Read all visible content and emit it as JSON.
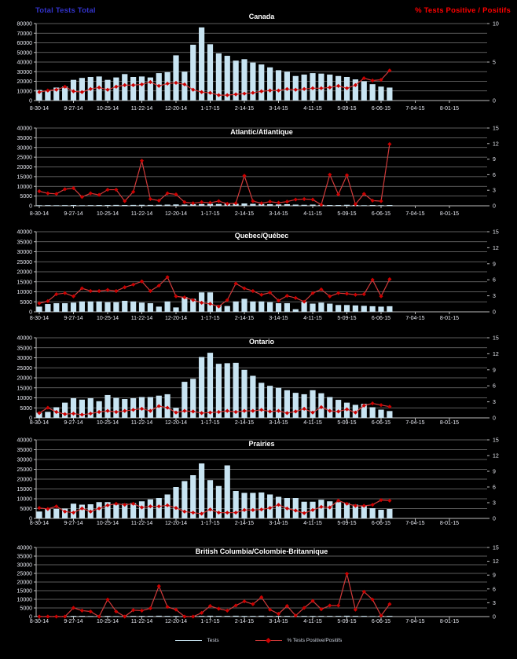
{
  "header": {
    "left_axis_title": "Total Tests Total",
    "right_axis_title": "% Tests Positive / Positifs"
  },
  "colors": {
    "background": "#000000",
    "bar_fill": "#C8E4F2",
    "line": "#D03A3A",
    "marker": "#CC0000",
    "grid": "#7A7A7A",
    "axis": "#BBBBBB",
    "text": "#E8EAF2",
    "left_title_color": "#3333CC",
    "right_title_color": "#FF0000",
    "panel_title_color": "#FFFFFF"
  },
  "legend": {
    "tests_label": "Tests",
    "pct_label": "% Tests Positive/Positifs"
  },
  "x_tick_labels": [
    "8-30-14",
    "9-27-14",
    "10-25-14",
    "11-22-14",
    "12-20-14",
    "1-17-15",
    "2-14-15",
    "3-14-15",
    "4-11-15",
    "5-09-15",
    "6-06-15",
    "7-04-15",
    "8-01-15"
  ],
  "chart_data": [
    {
      "type": "bar+line",
      "region": "Canada",
      "slug": "canada",
      "x_weekly_start": "8-30-14",
      "left_axis": {
        "min": 0,
        "max": 80000,
        "step": 10000
      },
      "right_axis": {
        "min": 0,
        "max": 10,
        "labels": [
          0,
          5,
          10
        ]
      },
      "tests": [
        11000,
        10500,
        13500,
        14500,
        21500,
        23500,
        24500,
        25000,
        21500,
        24000,
        27500,
        24500,
        25000,
        24000,
        28500,
        29500,
        47000,
        30000,
        58000,
        76000,
        58500,
        49000,
        46500,
        41500,
        43000,
        39500,
        37500,
        34500,
        31500,
        30000,
        25500,
        27000,
        28500,
        28000,
        27000,
        25500,
        24500,
        22000,
        20000,
        17000,
        14500,
        13500
      ],
      "pct_positive": [
        1.1,
        1.3,
        1.4,
        1.8,
        1.2,
        1.1,
        1.5,
        1.7,
        1.4,
        1.8,
        2.0,
        2.0,
        2.1,
        2.4,
        1.9,
        2.2,
        2.3,
        2.1,
        1.4,
        1.1,
        1.0,
        0.7,
        0.7,
        0.8,
        0.9,
        1.0,
        1.2,
        1.3,
        1.3,
        1.5,
        1.4,
        1.5,
        1.6,
        1.6,
        1.7,
        1.9,
        1.6,
        2.0,
        2.9,
        2.6,
        2.7,
        3.9
      ]
    },
    {
      "type": "bar+line",
      "region": "Atlantic/Atlantique",
      "slug": "atlantic",
      "x_weekly_start": "8-30-14",
      "left_axis": {
        "min": 0,
        "max": 40000,
        "step": 5000
      },
      "right_axis": {
        "min": 0,
        "max": 15,
        "labels": [
          0,
          3,
          6,
          9,
          12,
          15
        ]
      },
      "tests": [
        300,
        350,
        300,
        350,
        400,
        300,
        350,
        400,
        400,
        450,
        400,
        450,
        500,
        450,
        500,
        600,
        700,
        600,
        800,
        900,
        1000,
        900,
        1100,
        1000,
        1200,
        1000,
        900,
        800,
        700,
        800,
        600,
        500,
        600,
        500,
        400,
        400,
        500,
        400,
        300,
        400,
        300,
        400
      ],
      "pct_positive": [
        2.8,
        2.4,
        2.3,
        3.2,
        3.4,
        1.7,
        2.4,
        2.1,
        3.1,
        3.1,
        0.9,
        2.7,
        8.7,
        1.3,
        1.0,
        2.4,
        2.2,
        0.7,
        0.5,
        0.7,
        0.6,
        0.9,
        0.4,
        0.5,
        5.8,
        0.9,
        0.5,
        0.8,
        0.6,
        0.8,
        1.2,
        1.3,
        1.2,
        0.2,
        6.0,
        2.2,
        5.9,
        0.3,
        2.3,
        1.0,
        0.9,
        11.9
      ]
    },
    {
      "type": "bar+line",
      "region": "Quebec/Québec",
      "slug": "quebec",
      "x_weekly_start": "8-30-14",
      "left_axis": {
        "min": 0,
        "max": 40000,
        "step": 5000
      },
      "right_axis": {
        "min": 0,
        "max": 15,
        "labels": [
          0,
          3,
          6,
          9,
          12,
          15
        ]
      },
      "tests": [
        2600,
        3900,
        4300,
        4300,
        4600,
        5200,
        5200,
        5200,
        4800,
        4800,
        5500,
        5200,
        4600,
        4300,
        2600,
        5200,
        2200,
        7400,
        6500,
        9700,
        9700,
        3300,
        2900,
        5200,
        6500,
        5200,
        5200,
        4800,
        4300,
        4300,
        1300,
        4900,
        4100,
        4600,
        4100,
        3400,
        3400,
        3200,
        3000,
        2800,
        2600,
        2800
      ],
      "pct_positive": [
        1.6,
        2.0,
        3.3,
        3.5,
        2.9,
        4.4,
        3.9,
        3.9,
        4.1,
        3.9,
        4.6,
        5.1,
        5.7,
        3.9,
        4.9,
        6.5,
        2.9,
        2.7,
        2.2,
        1.7,
        1.5,
        1.0,
        2.2,
        5.3,
        4.4,
        3.9,
        3.2,
        3.6,
        2.1,
        3.0,
        2.6,
        1.9,
        3.5,
        4.2,
        2.9,
        3.5,
        3.4,
        3.2,
        3.3,
        6.0,
        2.9,
        6.1
      ]
    },
    {
      "type": "bar+line",
      "region": "Ontario",
      "slug": "ontario",
      "x_weekly_start": "8-30-14",
      "left_axis": {
        "min": 0,
        "max": 40000,
        "step": 5000
      },
      "right_axis": {
        "min": 0,
        "max": 15,
        "labels": [
          0,
          3,
          6,
          9,
          12,
          15
        ]
      },
      "tests": [
        2600,
        3000,
        5300,
        7600,
        9800,
        9100,
        9800,
        8300,
        11400,
        10000,
        9400,
        9800,
        10400,
        10400,
        11100,
        11800,
        5000,
        18000,
        19500,
        30400,
        32500,
        27000,
        27300,
        27500,
        24000,
        21000,
        17500,
        16000,
        15000,
        13800,
        12500,
        11800,
        13800,
        12300,
        10400,
        9000,
        7600,
        6500,
        7000,
        5300,
        4100,
        3400
      ],
      "pct_positive": [
        0.9,
        1.9,
        1.1,
        0.7,
        0.8,
        0.6,
        0.8,
        1.1,
        1.3,
        1.1,
        1.3,
        1.5,
        1.7,
        1.3,
        2.2,
        1.9,
        1.0,
        1.3,
        1.2,
        0.9,
        1.0,
        1.1,
        1.3,
        1.1,
        1.3,
        1.3,
        1.5,
        1.2,
        1.3,
        0.9,
        1.2,
        1.7,
        1.0,
        2.0,
        1.3,
        1.2,
        1.6,
        1.0,
        2.3,
        2.7,
        2.4,
        2.1
      ]
    },
    {
      "type": "bar+line",
      "region": "Prairies",
      "slug": "prairies",
      "x_weekly_start": "8-30-14",
      "left_axis": {
        "min": 0,
        "max": 40000,
        "step": 5000
      },
      "right_axis": {
        "min": 0,
        "max": 15,
        "labels": [
          0,
          3,
          6,
          9,
          12,
          15
        ]
      },
      "tests": [
        3500,
        4800,
        4800,
        5000,
        7500,
        7000,
        7200,
        8300,
        8300,
        7000,
        7500,
        7800,
        8700,
        9700,
        10400,
        12200,
        16000,
        19000,
        22000,
        28000,
        19500,
        16500,
        27000,
        14000,
        13000,
        13000,
        13200,
        12200,
        11000,
        10400,
        10400,
        8500,
        8500,
        9500,
        8700,
        8300,
        7800,
        7000,
        6300,
        5200,
        4400,
        4800
      ],
      "pct_positive": [
        2.0,
        1.8,
        2.3,
        1.3,
        1.1,
        1.9,
        1.3,
        1.9,
        2.5,
        2.8,
        2.6,
        2.8,
        2.1,
        2.3,
        2.3,
        2.5,
        2.0,
        1.3,
        1.1,
        0.9,
        1.7,
        1.1,
        1.1,
        1.1,
        1.6,
        1.6,
        1.7,
        2.0,
        2.6,
        1.9,
        1.5,
        1.0,
        1.6,
        2.2,
        2.1,
        3.4,
        2.8,
        2.4,
        2.4,
        2.6,
        3.5,
        3.4
      ]
    },
    {
      "type": "bar+line",
      "region": "British Columbia/Colombie-Britannique",
      "slug": "bc",
      "x_weekly_start": "8-30-14",
      "left_axis": {
        "min": 0,
        "max": 40000,
        "step": 5000
      },
      "right_axis": {
        "min": 0,
        "max": 15,
        "labels": [
          0,
          3,
          6,
          9,
          12,
          15
        ]
      },
      "tests": [
        300,
        300,
        300,
        300,
        400,
        400,
        300,
        300,
        400,
        300,
        300,
        400,
        400,
        400,
        500,
        400,
        400,
        300,
        400,
        400,
        500,
        400,
        400,
        500,
        400,
        400,
        500,
        400,
        400,
        400,
        300,
        400,
        400,
        400,
        400,
        400,
        500,
        400,
        400,
        300,
        400,
        400
      ],
      "pct_positive": [
        0.0,
        0.0,
        0.0,
        0.0,
        1.9,
        1.3,
        1.1,
        0.0,
        3.7,
        1.1,
        0.0,
        1.4,
        1.3,
        1.8,
        6.6,
        2.1,
        1.5,
        0.0,
        0.0,
        0.8,
        2.3,
        1.7,
        1.3,
        2.4,
        3.3,
        2.7,
        4.2,
        1.5,
        0.6,
        2.3,
        0.2,
        1.9,
        3.4,
        1.6,
        2.4,
        2.4,
        9.3,
        1.5,
        5.4,
        3.7,
        0.2,
        2.7
      ]
    }
  ]
}
